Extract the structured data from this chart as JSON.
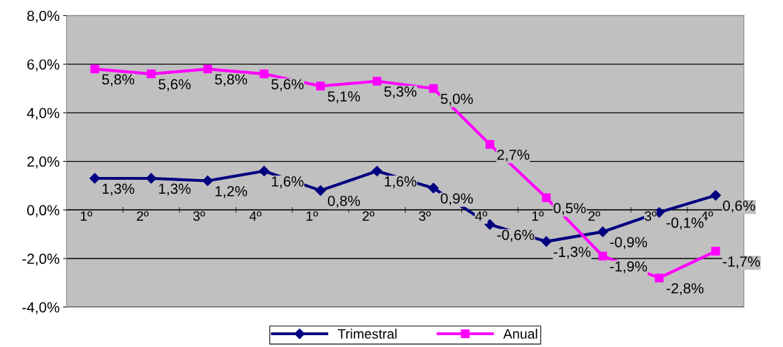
{
  "chart_data": {
    "type": "line",
    "categories": [
      "1º",
      "2º",
      "3º",
      "4º",
      "1º",
      "2º",
      "3º",
      "4º",
      "1º",
      "2º",
      "3º",
      "4º"
    ],
    "series": [
      {
        "name": "Trimestral",
        "color": "#000080",
        "marker": "diamond",
        "values": [
          1.3,
          1.3,
          1.2,
          1.6,
          0.8,
          1.6,
          0.9,
          -0.6,
          -1.3,
          -0.9,
          -0.1,
          0.6
        ],
        "value_labels": [
          "1,3%",
          "1,3%",
          "1,2%",
          "1,6%",
          "0,8%",
          "1,6%",
          "0,9%",
          "-0,6%",
          "-1,3%",
          "-0,9%",
          "-0,1%",
          "0,6%"
        ]
      },
      {
        "name": "Anual",
        "color": "#ff00ff",
        "marker": "square",
        "values": [
          5.8,
          5.6,
          5.8,
          5.6,
          5.1,
          5.3,
          5.0,
          2.7,
          0.5,
          -1.9,
          -2.8,
          -1.7
        ],
        "value_labels": [
          "5,8%",
          "5,6%",
          "5,8%",
          "5,6%",
          "5,1%",
          "5,3%",
          "5,0%",
          "2,7%",
          "0,5%",
          "-1,9%",
          "-2,8%",
          "-1,7%"
        ]
      }
    ],
    "ylim": [
      -4,
      8
    ],
    "yticks": [
      {
        "value": -4,
        "label": "-4,0%"
      },
      {
        "value": -2,
        "label": "-2,0%"
      },
      {
        "value": 0,
        "label": "0,0%"
      },
      {
        "value": 2,
        "label": "2,0%"
      },
      {
        "value": 4,
        "label": "4,0%"
      },
      {
        "value": 6,
        "label": "6,0%"
      },
      {
        "value": 8,
        "label": "8,0%"
      }
    ],
    "grid": "y",
    "legend": "bottom",
    "line_style": "solid"
  }
}
